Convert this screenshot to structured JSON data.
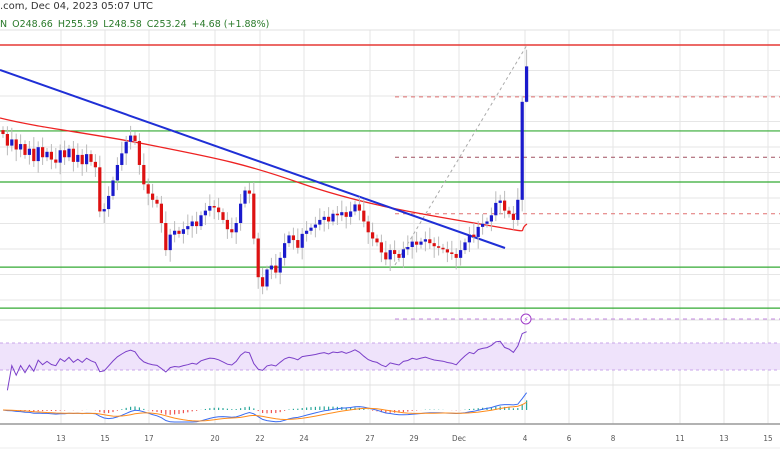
{
  "header": {
    "source_time": ".com, Dec 04, 2023 05:07 UTC",
    "symbol_suffix": "N",
    "open": "O248.66",
    "high": "H255.39",
    "low": "L248.58",
    "close": "C253.24",
    "change": "+4.68 (+1.88%)"
  },
  "colors": {
    "up": "#1a1acc",
    "down": "#dd1111",
    "trend": "#1f2fd6",
    "ma": "#ee2222",
    "support": "#33aa33",
    "resistance": "#e53935",
    "rsi": "#7b3fc9",
    "rsi_band": "#efe3fb",
    "macd": "#3b6cf0",
    "signal": "#ff8c1a"
  },
  "chart_data": {
    "type": "candlestick",
    "title": "",
    "last_candle": {
      "open": 248.66,
      "high": 255.39,
      "low": 248.58,
      "close": 253.24
    },
    "closes": [
      244.5,
      243,
      243.8,
      242.5,
      243.2,
      241.8,
      242.6,
      241,
      242.8,
      241.5,
      242.2,
      241.2,
      240.8,
      242.4,
      241.5,
      242.6,
      240.9,
      241.8,
      240.6,
      241.9,
      240.9,
      240.2,
      234.5,
      234.8,
      236.5,
      238.5,
      240.5,
      242,
      243.5,
      244.3,
      243.6,
      240.5,
      238,
      236.8,
      236,
      235.5,
      233,
      229.5,
      231.5,
      232,
      231.6,
      232.2,
      232.6,
      233.2,
      232.6,
      234,
      234.6,
      235.2,
      235,
      234.4,
      233.4,
      232.2,
      231.8,
      233,
      235.5,
      237.2,
      236.8,
      231,
      226,
      224.8,
      227,
      227.5,
      226.6,
      228.5,
      230.4,
      231.4,
      230.8,
      229.8,
      231.6,
      232,
      232.4,
      232.8,
      233.4,
      233.8,
      233.2,
      234.2,
      234,
      234.4,
      233.8,
      234.5,
      235.4,
      234.6,
      233.2,
      231.8,
      231,
      230.5,
      229.2,
      228.3,
      229.5,
      229,
      228.5,
      229.6,
      229.9,
      230.6,
      230.2,
      230.6,
      230.9,
      230.4,
      230.0,
      229.8,
      229.6,
      229.2,
      229,
      228.5,
      229.5,
      230.5,
      231.5,
      231.2,
      232.5,
      232.9,
      233.2,
      234,
      235.6,
      235.9,
      234.6,
      234.2,
      233.4,
      236,
      248.66,
      253.24
    ],
    "horizontal_levels": {
      "resistance": [
        256
      ],
      "support": [
        244.9,
        238.3,
        227.3,
        222
      ],
      "fib_dashed": [
        249.3,
        241.5,
        234.2
      ]
    },
    "x_tick_labels": [
      "13",
      "15",
      "17",
      "20",
      "22",
      "24",
      "27",
      "29",
      "Dec",
      "4",
      "6",
      "8",
      "11",
      "13",
      "15"
    ],
    "ylim": [
      218,
      257
    ]
  }
}
